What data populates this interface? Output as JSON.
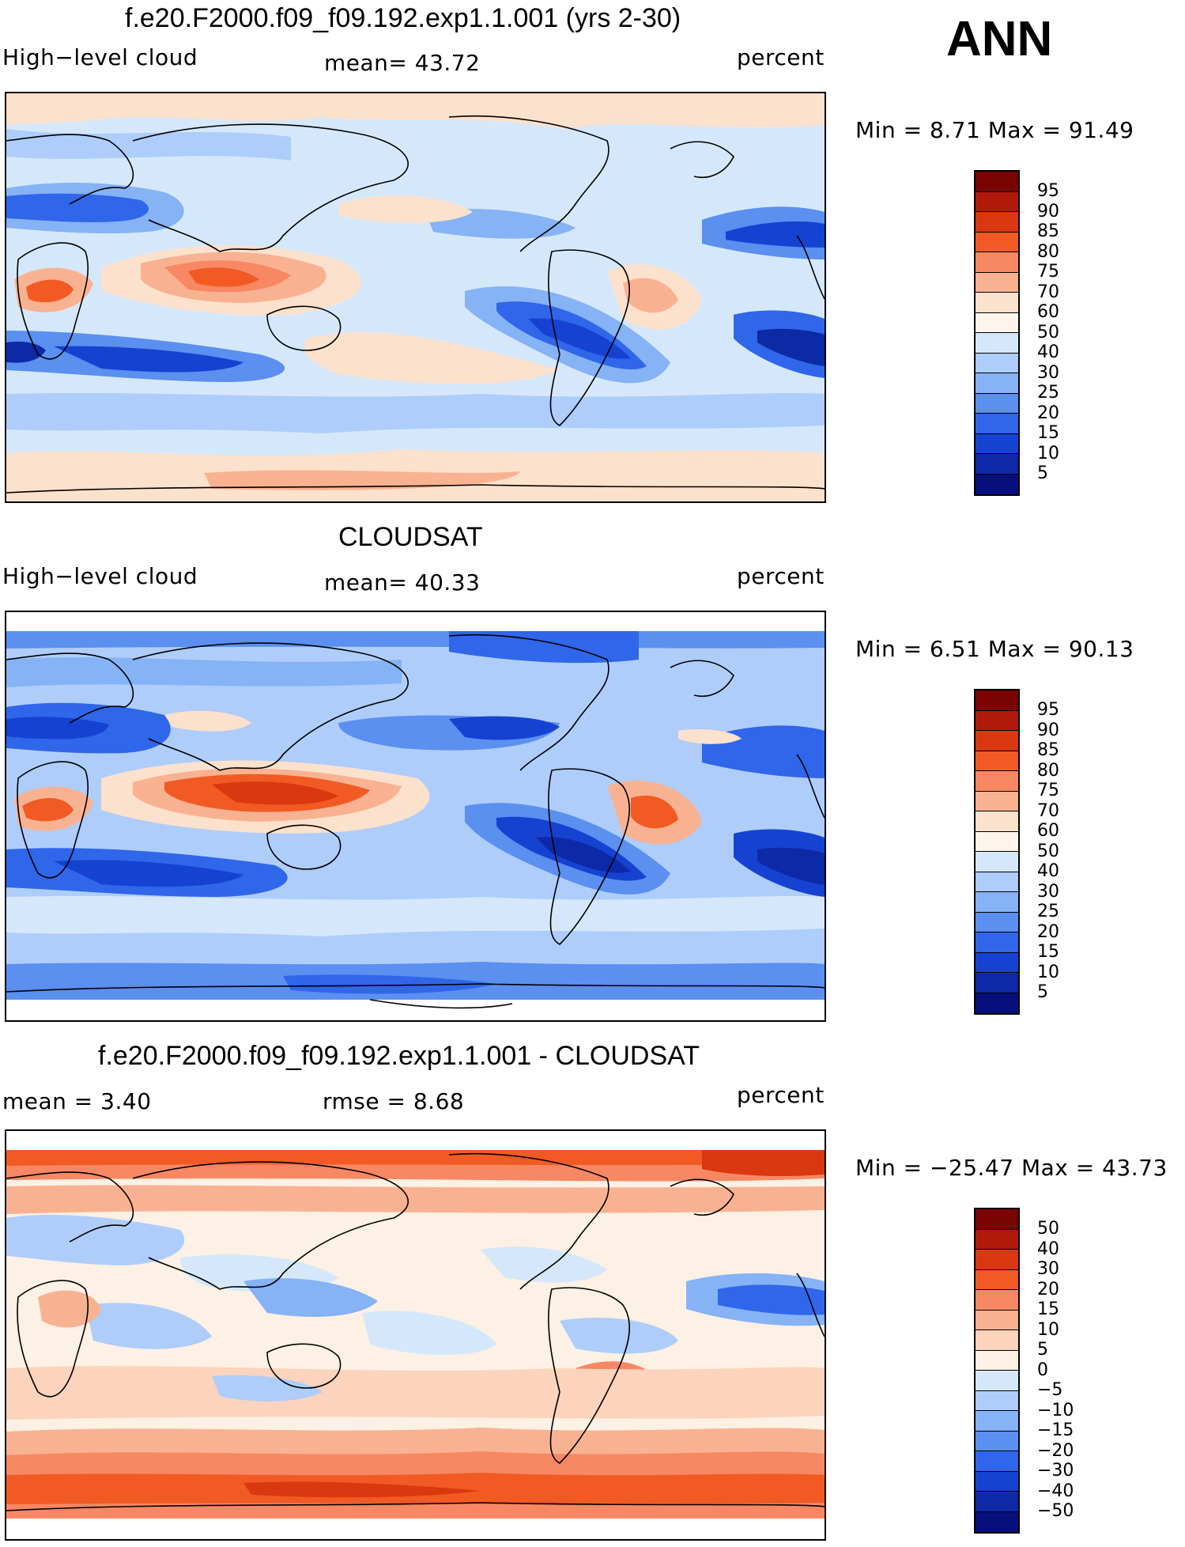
{
  "season": "ANN",
  "unit_label": "percent",
  "panels": [
    {
      "title": "f.e20.F2000.f09_f09.192.exp1.1.001 (yrs 2-30)",
      "variable": "High−level cloud",
      "stat1": "mean=   43.72",
      "stat2": "",
      "unit": "percent",
      "minmax": "Min =    8.71  Max =    91.49",
      "colorbar_labels": [
        "95",
        "90",
        "85",
        "80",
        "75",
        "70",
        "60",
        "50",
        "40",
        "30",
        "25",
        "20",
        "15",
        "10",
        "5"
      ],
      "colorbar_colors": [
        "#7a0403",
        "#b01a0b",
        "#d93810",
        "#f25a24",
        "#f78863",
        "#f9b291",
        "#fce1cd",
        "#d5e8fb",
        "#aecdfa",
        "#86b2f6",
        "#5b8ff0",
        "#2f66ea",
        "#1642d2",
        "#0c2aa6",
        "#060f7c"
      ]
    },
    {
      "title": "CLOUDSAT",
      "variable": "High−level cloud",
      "stat1": "mean=   40.33",
      "stat2": "",
      "unit": "percent",
      "minmax": "Min =    6.51  Max =    90.13",
      "colorbar_labels": [
        "95",
        "90",
        "85",
        "80",
        "75",
        "70",
        "60",
        "50",
        "40",
        "30",
        "25",
        "20",
        "15",
        "10",
        "5"
      ],
      "colorbar_colors": [
        "#7a0403",
        "#b01a0b",
        "#d93810",
        "#f25a24",
        "#f78863",
        "#f9b291",
        "#fce1cd",
        "#fdf4ec",
        "#d5e8fb",
        "#aecdfa",
        "#86b2f6",
        "#5b8ff0",
        "#2f66ea",
        "#1642d2",
        "#0c2aa6",
        "#060f7c"
      ]
    },
    {
      "title": "f.e20.F2000.f09_f09.192.exp1.1.001 - CLOUDSAT",
      "variable": "mean =    3.40",
      "stat1": "rmse =    8.68",
      "stat2": "",
      "unit": "percent",
      "minmax": "Min = −25.47  Max =    43.73",
      "colorbar_labels": [
        "50",
        "40",
        "30",
        "20",
        "15",
        "10",
        "5",
        "0",
        "−5",
        "−10",
        "−15",
        "−20",
        "−30",
        "−40",
        "−50"
      ],
      "colorbar_colors": [
        "#7a0403",
        "#b01a0b",
        "#d93810",
        "#f25a24",
        "#f78863",
        "#f9b291",
        "#fcd3bc",
        "#fdf0e4",
        "#d5e8fb",
        "#aecdfa",
        "#86b2f6",
        "#5b8ff0",
        "#2f66ea",
        "#1642d2",
        "#0c2aa6",
        "#060f7c"
      ]
    }
  ]
}
